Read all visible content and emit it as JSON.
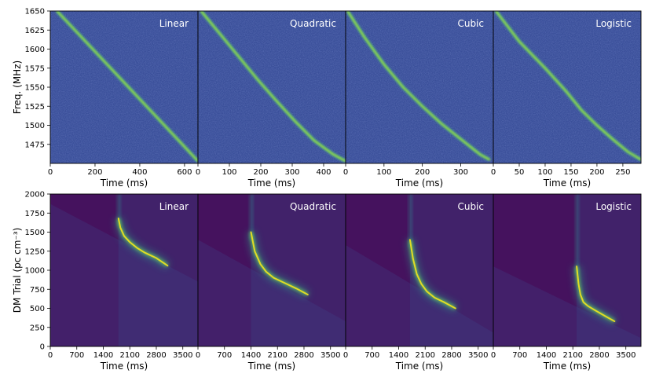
{
  "chart_data": [
    {
      "type": "heatmap",
      "row": "spectra",
      "ylabel": "Freq. (MHz)",
      "ylim": [
        1450,
        1650
      ],
      "yticks": [
        1475,
        1500,
        1525,
        1550,
        1575,
        1600,
        1625,
        1650
      ],
      "panels": [
        {
          "title": "Linear",
          "xlabel": "Time (ms)",
          "xlim": [
            0,
            660
          ],
          "xticks": [
            0,
            200,
            400,
            600
          ],
          "track": [
            [
              30,
              1650
            ],
            [
              110,
              1625
            ],
            [
              190,
              1600
            ],
            [
              270,
              1575
            ],
            [
              350,
              1550
            ],
            [
              430,
              1525
            ],
            [
              510,
              1500
            ],
            [
              590,
              1475
            ],
            [
              660,
              1453
            ]
          ]
        },
        {
          "title": "Quadratic",
          "xlabel": "Time (ms)",
          "xlim": [
            0,
            470
          ],
          "xticks": [
            0,
            100,
            200,
            300,
            400
          ],
          "track": [
            [
              10,
              1650
            ],
            [
              70,
              1620
            ],
            [
              130,
              1590
            ],
            [
              190,
              1560
            ],
            [
              250,
              1532
            ],
            [
              310,
              1505
            ],
            [
              370,
              1480
            ],
            [
              430,
              1462
            ],
            [
              470,
              1453
            ]
          ]
        },
        {
          "title": "Cubic",
          "xlabel": "Time (ms)",
          "xlim": [
            0,
            385
          ],
          "xticks": [
            0,
            100,
            200,
            300
          ],
          "track": [
            [
              5,
              1650
            ],
            [
              50,
              1615
            ],
            [
              100,
              1580
            ],
            [
              150,
              1550
            ],
            [
              200,
              1525
            ],
            [
              250,
              1502
            ],
            [
              300,
              1482
            ],
            [
              350,
              1462
            ],
            [
              375,
              1455
            ]
          ]
        },
        {
          "title": "Logistic",
          "xlabel": "Time (ms)",
          "xlim": [
            0,
            285
          ],
          "xticks": [
            0,
            50,
            100,
            150,
            200,
            250
          ],
          "track": [
            [
              5,
              1650
            ],
            [
              50,
              1610
            ],
            [
              100,
              1575
            ],
            [
              140,
              1545
            ],
            [
              170,
              1520
            ],
            [
              200,
              1500
            ],
            [
              230,
              1482
            ],
            [
              260,
              1465
            ],
            [
              285,
              1455
            ]
          ]
        }
      ]
    },
    {
      "type": "heatmap",
      "row": "dm_trials",
      "ylabel": "DM Trial (pc cm⁻³)",
      "ylim": [
        0,
        2000
      ],
      "yticks": [
        0,
        250,
        500,
        750,
        1000,
        1250,
        1500,
        1750,
        2000
      ],
      "xlim": [
        0,
        3900
      ],
      "xticks": [
        0,
        700,
        1400,
        2100,
        2800,
        3500
      ],
      "panels": [
        {
          "title": "Linear",
          "xlabel": "Time (ms)",
          "vertical_edge_ms": 1800,
          "diagonal": [
            [
              0,
              1870
            ],
            [
              3900,
              850
            ]
          ],
          "track": [
            [
              1800,
              1680
            ],
            [
              1850,
              1560
            ],
            [
              1950,
              1450
            ],
            [
              2100,
              1370
            ],
            [
              2300,
              1290
            ],
            [
              2500,
              1230
            ],
            [
              2800,
              1160
            ],
            [
              3100,
              1060
            ]
          ]
        },
        {
          "title": "Quadratic",
          "xlabel": "Time (ms)",
          "vertical_edge_ms": 1400,
          "diagonal": [
            [
              0,
              1400
            ],
            [
              3900,
              330
            ]
          ],
          "track": [
            [
              1400,
              1500
            ],
            [
              1500,
              1250
            ],
            [
              1650,
              1080
            ],
            [
              1800,
              980
            ],
            [
              2000,
              900
            ],
            [
              2300,
              830
            ],
            [
              2600,
              760
            ],
            [
              2900,
              680
            ]
          ]
        },
        {
          "title": "Cubic",
          "xlabel": "Time (ms)",
          "vertical_edge_ms": 1700,
          "diagonal": [
            [
              0,
              1330
            ],
            [
              3900,
              180
            ]
          ],
          "track": [
            [
              1700,
              1400
            ],
            [
              1780,
              1150
            ],
            [
              1880,
              950
            ],
            [
              2000,
              820
            ],
            [
              2150,
              720
            ],
            [
              2350,
              640
            ],
            [
              2600,
              580
            ],
            [
              2900,
              500
            ]
          ]
        },
        {
          "title": "Logistic",
          "xlabel": "Time (ms)",
          "vertical_edge_ms": 2200,
          "diagonal": [
            [
              0,
              1050
            ],
            [
              3900,
              110
            ]
          ],
          "track": [
            [
              2200,
              1050
            ],
            [
              2250,
              820
            ],
            [
              2300,
              680
            ],
            [
              2380,
              580
            ],
            [
              2500,
              530
            ],
            [
              2700,
              470
            ],
            [
              2950,
              400
            ],
            [
              3200,
              330
            ]
          ]
        }
      ]
    }
  ],
  "colors": {
    "spectrum_bg": "#3a4f9a",
    "spectrum_track": "#9ee63a",
    "dm_bg": "#45125e",
    "dm_track": "#f0e41e",
    "dm_halo": "#2aa389",
    "panel_title": "#ffffff"
  }
}
